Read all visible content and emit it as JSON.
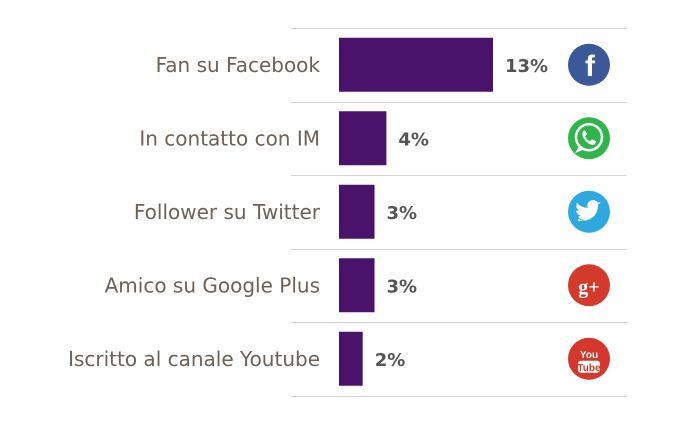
{
  "chart_data": {
    "type": "bar",
    "orientation": "horizontal",
    "categories": [
      "Fan su Facebook",
      "In contatto con IM",
      "Follower su Twitter",
      "Amico su Google Plus",
      "Iscritto al canale Youtube"
    ],
    "values": [
      13,
      4,
      3,
      3,
      2
    ],
    "value_labels": [
      "13%",
      "4%",
      "3%",
      "3%",
      "2%"
    ],
    "icons": [
      "facebook-icon",
      "whatsapp-icon",
      "twitter-icon",
      "google-plus-icon",
      "youtube-icon"
    ],
    "icon_glyphs": [
      "f",
      "",
      "",
      "g+",
      "You Tube"
    ],
    "title": "",
    "xlabel": "",
    "ylabel": "",
    "xlim": [
      0,
      13
    ],
    "grid": "row separators",
    "legend": "none",
    "colors": {
      "bar": "#4a136b",
      "separator": "#d6d6d6",
      "facebook": "#3b5998",
      "whatsapp": "#2fb64a",
      "twitter": "#2ea9e0",
      "google_plus": "#d33a2c",
      "youtube": "#d6372c"
    }
  }
}
